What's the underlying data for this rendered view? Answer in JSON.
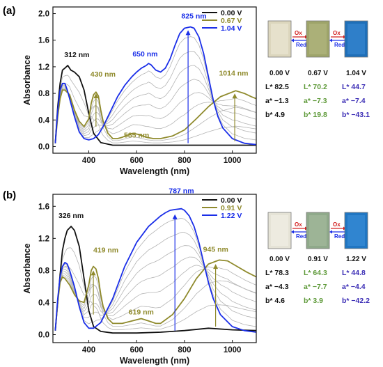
{
  "colors": {
    "black": "#111111",
    "olive": "#8f8a2c",
    "blue": "#1a2ee8",
    "gray": "#b4b4b4",
    "green": "#5f9a3a",
    "purple": "#3b2db5",
    "red": "#d22020"
  },
  "chart_data": [
    {
      "panel": "(a)",
      "type": "line",
      "xlabel": "Wavelength (nm)",
      "ylabel": "Absorbance",
      "xlim": [
        250,
        1100
      ],
      "ylim": [
        -0.1,
        2.1
      ],
      "xticks": [
        400,
        600,
        800,
        1000
      ],
      "yticks": [
        0.0,
        0.4,
        0.8,
        1.2,
        1.6,
        2.0
      ],
      "legend": {
        "placement": "top-right",
        "entries": [
          {
            "label": "0.00 V",
            "color": "#111111"
          },
          {
            "label": "0.67 V",
            "color": "#8f8a2c"
          },
          {
            "label": "1.04 V",
            "color": "#1a2ee8"
          }
        ]
      },
      "series": [
        {
          "color": "#111111",
          "x": [
            260,
            270,
            280,
            290,
            300,
            312,
            325,
            340,
            360,
            380,
            400,
            420,
            450,
            500,
            600,
            700,
            800,
            900,
            1000,
            1100
          ],
          "y": [
            0.05,
            0.6,
            0.95,
            1.15,
            1.18,
            1.22,
            1.15,
            1.12,
            1.05,
            0.85,
            0.5,
            0.2,
            0.06,
            0.02,
            0.02,
            0.02,
            0.02,
            0.02,
            0.02,
            0.02
          ]
        },
        {
          "color": "#8f8a2c",
          "x": [
            260,
            270,
            280,
            290,
            300,
            320,
            340,
            360,
            380,
            400,
            410,
            420,
            430,
            440,
            450,
            460,
            480,
            500,
            520,
            540,
            560,
            585,
            610,
            640,
            670,
            700,
            750,
            800,
            850,
            900,
            950,
            1000,
            1014,
            1050,
            1080,
            1100
          ],
          "y": [
            0.05,
            0.45,
            0.72,
            0.85,
            0.85,
            0.78,
            0.55,
            0.38,
            0.3,
            0.42,
            0.65,
            0.78,
            0.82,
            0.76,
            0.55,
            0.38,
            0.2,
            0.12,
            0.12,
            0.14,
            0.17,
            0.2,
            0.18,
            0.14,
            0.12,
            0.12,
            0.16,
            0.25,
            0.42,
            0.6,
            0.75,
            0.82,
            0.84,
            0.8,
            0.75,
            0.72
          ]
        },
        {
          "color": "#1a2ee8",
          "x": [
            260,
            270,
            280,
            290,
            300,
            310,
            320,
            340,
            360,
            380,
            400,
            420,
            440,
            460,
            480,
            500,
            520,
            550,
            580,
            600,
            620,
            640,
            650,
            660,
            680,
            700,
            720,
            740,
            760,
            780,
            800,
            825,
            840,
            860,
            880,
            900,
            920,
            940,
            960,
            1000,
            1050,
            1100
          ],
          "y": [
            0.05,
            0.55,
            0.85,
            0.95,
            0.95,
            0.85,
            0.72,
            0.45,
            0.22,
            0.12,
            0.1,
            0.12,
            0.18,
            0.3,
            0.45,
            0.6,
            0.75,
            0.92,
            1.05,
            1.12,
            1.18,
            1.22,
            1.25,
            1.23,
            1.15,
            1.12,
            1.18,
            1.32,
            1.52,
            1.7,
            1.78,
            1.8,
            1.78,
            1.65,
            1.4,
            1.05,
            0.7,
            0.45,
            0.28,
            0.12,
            0.05,
            0.03
          ]
        }
      ],
      "intermediates": [
        0.15,
        0.3,
        0.45,
        0.6,
        0.75,
        0.9
      ],
      "annotations": [
        {
          "text": "312 nm",
          "x": 312,
          "y": 1.22,
          "color": "#111111",
          "anchor": "start",
          "dx": -5,
          "dy": -12
        },
        {
          "text": "430 nm",
          "x": 430,
          "y": 0.82,
          "color": "#8f8a2c",
          "anchor": "middle",
          "dx": 10,
          "dy": -22
        },
        {
          "text": "585 nm",
          "x": 585,
          "y": 0.2,
          "color": "#8f8a2c",
          "anchor": "middle",
          "dx": 5,
          "dy": 6
        },
        {
          "text": "650 nm",
          "x": 650,
          "y": 1.25,
          "color": "#1a2ee8",
          "anchor": "middle",
          "dx": -5,
          "dy": -10
        },
        {
          "text": "825 nm",
          "x": 825,
          "y": 1.8,
          "color": "#1a2ee8",
          "anchor": "middle",
          "dx": 5,
          "dy": -12
        },
        {
          "text": "1014 nm",
          "x": 1014,
          "y": 0.84,
          "color": "#8f8a2c",
          "anchor": "middle",
          "dx": -3,
          "dy": -22
        }
      ],
      "arrows": [
        {
          "x": 430,
          "y1": 0.3,
          "y2": 0.8,
          "color": "#8f8a2c"
        },
        {
          "x": 815,
          "y1": 0.05,
          "y2": 1.75,
          "color": "#1a2ee8"
        },
        {
          "x": 1010,
          "y1": 0.08,
          "y2": 0.8,
          "color": "#8f8a2c"
        }
      ]
    },
    {
      "panel": "(b)",
      "type": "line",
      "xlabel": "Wavelength (nm)",
      "ylabel": "Absorbance",
      "xlim": [
        250,
        1100
      ],
      "ylim": [
        -0.1,
        1.75
      ],
      "xticks": [
        400,
        600,
        800,
        1000
      ],
      "yticks": [
        0.0,
        0.4,
        0.8,
        1.2,
        1.6
      ],
      "legend": {
        "placement": "top-right",
        "entries": [
          {
            "label": "0.00 V",
            "color": "#111111"
          },
          {
            "label": "0.91 V",
            "color": "#8f8a2c"
          },
          {
            "label": "1.22 V",
            "color": "#1a2ee8"
          }
        ]
      },
      "series": [
        {
          "color": "#111111",
          "x": [
            260,
            270,
            280,
            290,
            300,
            310,
            326,
            340,
            360,
            380,
            400,
            420,
            450,
            500,
            600,
            700,
            800,
            900,
            1000,
            1100
          ],
          "y": [
            0.05,
            0.4,
            0.75,
            1.05,
            1.2,
            1.3,
            1.35,
            1.3,
            1.1,
            0.7,
            0.3,
            0.1,
            0.04,
            0.02,
            0.02,
            0.03,
            0.05,
            0.08,
            0.06,
            0.05
          ]
        },
        {
          "color": "#8f8a2c",
          "x": [
            260,
            270,
            280,
            290,
            300,
            320,
            340,
            360,
            380,
            400,
            410,
            419,
            430,
            440,
            450,
            460,
            480,
            500,
            540,
            580,
            619,
            650,
            680,
            700,
            750,
            800,
            850,
            900,
            945,
            980,
            1020,
            1060,
            1100
          ],
          "y": [
            0.05,
            0.4,
            0.65,
            0.72,
            0.7,
            0.62,
            0.5,
            0.42,
            0.4,
            0.62,
            0.8,
            0.85,
            0.82,
            0.7,
            0.5,
            0.35,
            0.2,
            0.14,
            0.14,
            0.17,
            0.2,
            0.17,
            0.14,
            0.14,
            0.25,
            0.45,
            0.7,
            0.88,
            0.93,
            0.92,
            0.85,
            0.78,
            0.72
          ]
        },
        {
          "color": "#1a2ee8",
          "x": [
            260,
            270,
            280,
            290,
            300,
            310,
            320,
            340,
            360,
            380,
            400,
            420,
            450,
            500,
            550,
            600,
            650,
            700,
            720,
            740,
            760,
            787,
            800,
            820,
            840,
            860,
            880,
            900,
            920,
            950,
            1000,
            1050,
            1100
          ],
          "y": [
            0.05,
            0.45,
            0.72,
            0.85,
            0.9,
            0.88,
            0.8,
            0.6,
            0.35,
            0.15,
            0.08,
            0.08,
            0.15,
            0.45,
            0.85,
            1.15,
            1.35,
            1.48,
            1.52,
            1.55,
            1.56,
            1.57,
            1.55,
            1.48,
            1.35,
            1.15,
            0.9,
            0.65,
            0.45,
            0.25,
            0.1,
            0.05,
            0.03
          ]
        }
      ],
      "intermediates": [
        0.15,
        0.3,
        0.45,
        0.6,
        0.75,
        0.9
      ],
      "annotations": [
        {
          "text": "326 nm",
          "x": 326,
          "y": 1.35,
          "color": "#111111",
          "anchor": "middle",
          "dx": 0,
          "dy": -12
        },
        {
          "text": "419 nm",
          "x": 419,
          "y": 0.85,
          "color": "#8f8a2c",
          "anchor": "middle",
          "dx": 18,
          "dy": -20
        },
        {
          "text": "619 nm",
          "x": 619,
          "y": 0.2,
          "color": "#8f8a2c",
          "anchor": "middle",
          "dx": 0,
          "dy": -6
        },
        {
          "text": "787 nm",
          "x": 787,
          "y": 1.57,
          "color": "#1a2ee8",
          "anchor": "middle",
          "dx": 0,
          "dy": -22
        },
        {
          "text": "945 nm",
          "x": 945,
          "y": 0.93,
          "color": "#8f8a2c",
          "anchor": "middle",
          "dx": -5,
          "dy": -12
        }
      ],
      "arrows": [
        {
          "x": 419,
          "y1": 0.25,
          "y2": 0.8,
          "color": "#8f8a2c"
        },
        {
          "x": 760,
          "y1": 0.05,
          "y2": 1.5,
          "color": "#1a2ee8"
        },
        {
          "x": 930,
          "y1": 0.1,
          "y2": 0.88,
          "color": "#8f8a2c"
        }
      ]
    }
  ],
  "samples": [
    {
      "panel": "(a)",
      "swatches": [
        {
          "voltage": "0.00 V",
          "fill": "#dcd6bd",
          "inner": "#ece8d6",
          "L": "L* 82.5",
          "a": "a* −1.3",
          "b": "b* 4.9",
          "textColor": "#111111"
        },
        {
          "voltage": "0.67 V",
          "fill": "#9ea46a",
          "inner": "#b4b982",
          "L": "L* 70.2",
          "a": "a* −7.3",
          "b": "b* 19.8",
          "textColor": "#5f9a3a"
        },
        {
          "voltage": "1.04 V",
          "fill": "#1f6fb8",
          "inner": "#3a8ad3",
          "L": "L* 44.7",
          "a": "a* −7.4",
          "b": "b* −43.1",
          "textColor": "#3b2db5"
        }
      ],
      "switch": {
        "ox": "Ox",
        "red": "Red"
      }
    },
    {
      "panel": "(b)",
      "swatches": [
        {
          "voltage": "0.00 V",
          "fill": "#e5e3d6",
          "inner": "#f2f0e6",
          "L": "L* 78.3",
          "a": "a* −4.3",
          "b": "b* 4.6",
          "textColor": "#111111"
        },
        {
          "voltage": "0.91 V",
          "fill": "#8fa98a",
          "inner": "#a6bd9f",
          "L": "L* 64.3",
          "a": "a* −7.7",
          "b": "b* 3.9",
          "textColor": "#5f9a3a"
        },
        {
          "voltage": "1.22 V",
          "fill": "#2076c2",
          "inner": "#3c8fd8",
          "L": "L* 44.8",
          "a": "a* −4.4",
          "b": "b* −42.2",
          "textColor": "#3b2db5"
        }
      ],
      "switch": {
        "ox": "Ox",
        "red": "Red"
      }
    }
  ]
}
